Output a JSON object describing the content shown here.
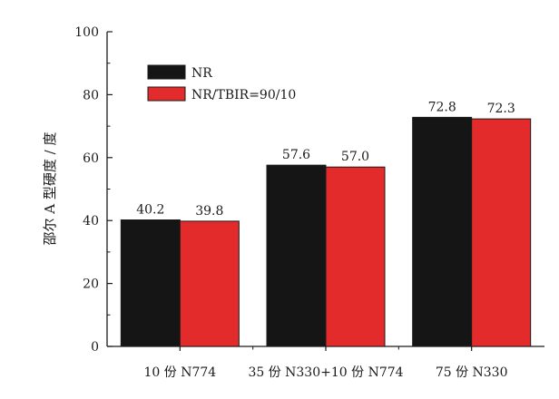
{
  "chart_data": {
    "type": "bar",
    "title": "",
    "xlabel": "",
    "ylabel": "邵尔 A 型硬度 / 度",
    "ylim": [
      0,
      100
    ],
    "yticks": [
      0,
      20,
      40,
      60,
      80,
      100
    ],
    "categories": [
      "10 份 N774",
      "35 份 N330+10 份 N774",
      "75 份 N330"
    ],
    "series": [
      {
        "name": "NR",
        "color": "#151515",
        "values": [
          40.2,
          57.6,
          72.8
        ],
        "labels": [
          "40.2",
          "57.6",
          "72.8"
        ]
      },
      {
        "name": "NR/TBIR=90/10",
        "color": "#e32b2b",
        "values": [
          39.8,
          57.0,
          72.3
        ],
        "labels": [
          "39.8",
          "57.0",
          "72.3"
        ]
      }
    ],
    "legend_position": "top-left",
    "grid": false
  }
}
